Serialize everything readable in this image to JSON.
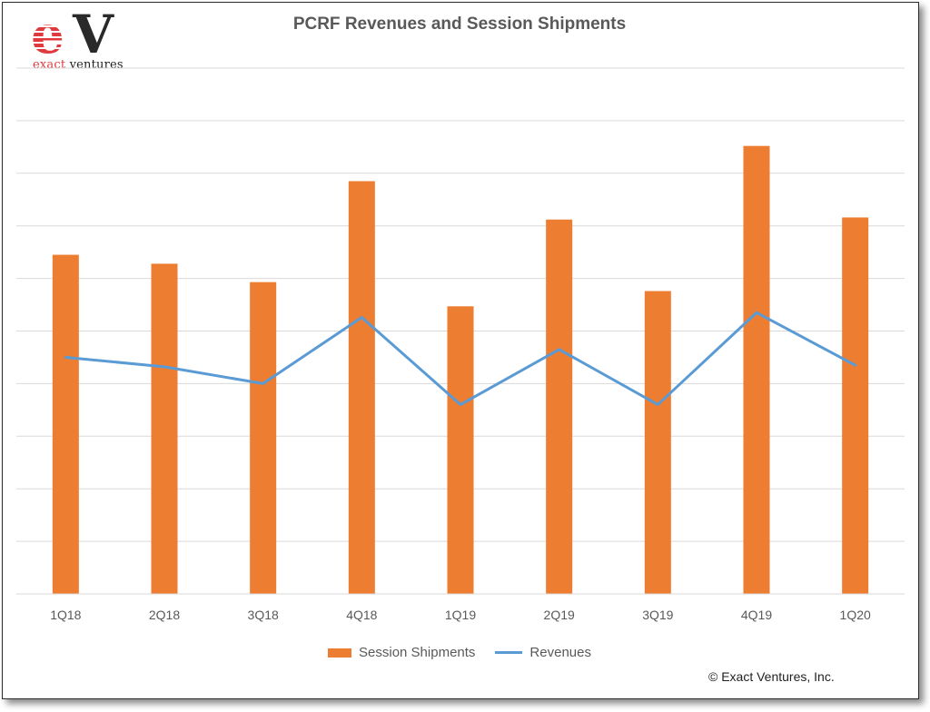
{
  "logo": {
    "mark": "ev",
    "text_prefix": "exact",
    "text_suffix": " ventures",
    "accent_color": "#e0393e",
    "dark_color": "#2a2a2a"
  },
  "copyright": "© Exact Ventures, Inc.",
  "chart_data": {
    "type": "bar",
    "title": "PCRF Revenues and Session Shipments",
    "xlabel": "",
    "ylabel": "",
    "categories": [
      "1Q18",
      "2Q18",
      "3Q18",
      "4Q18",
      "1Q19",
      "2Q19",
      "3Q19",
      "4Q19",
      "1Q20"
    ],
    "ylim": [
      0,
      10
    ],
    "y_tick_labels_shown": false,
    "grid": true,
    "legend_position": "bottom",
    "series": [
      {
        "name": "Session Shipments",
        "kind": "bar",
        "color": "#ed7d31",
        "values": [
          6.45,
          6.28,
          5.93,
          7.85,
          5.47,
          7.12,
          5.76,
          8.52,
          7.16
        ]
      },
      {
        "name": "Revenues",
        "kind": "line",
        "color": "#5b9bd5",
        "values": [
          4.5,
          4.32,
          4.0,
          5.26,
          3.6,
          4.65,
          3.6,
          5.35,
          4.35
        ]
      }
    ]
  }
}
